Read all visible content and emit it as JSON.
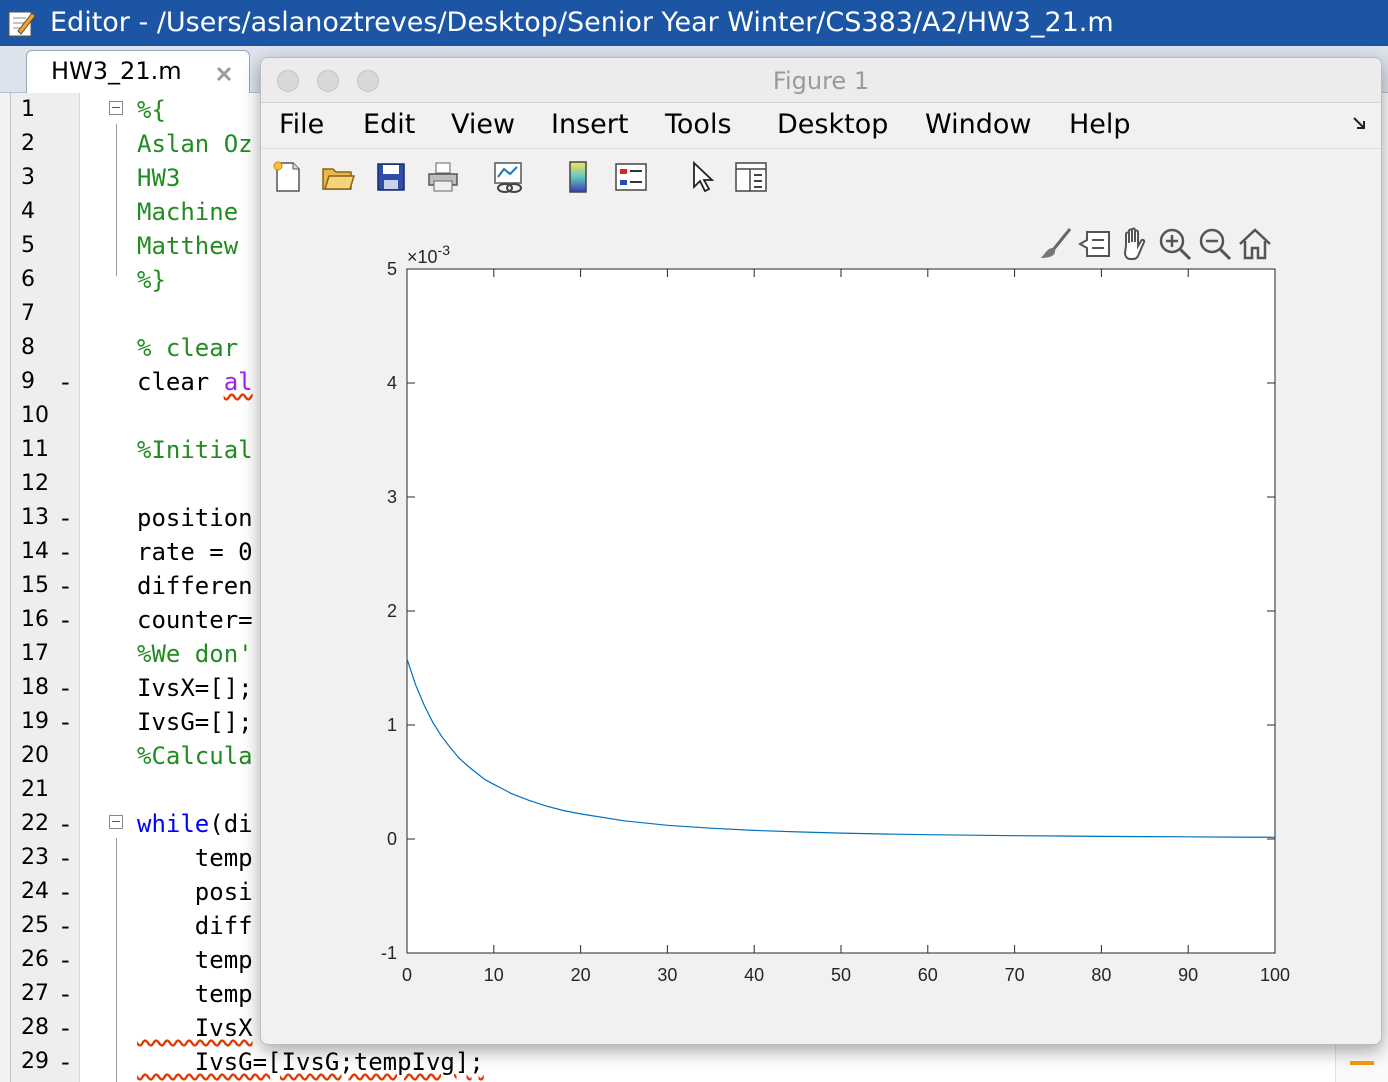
{
  "editor": {
    "title": "Editor - /Users/aslanoztreves/Desktop/Senior Year Winter/CS383/A2/HW3_21.m",
    "tab_label": "HW3_21.m",
    "lines": [
      {
        "n": "1",
        "bp": "",
        "code": "%{",
        "cls": "c-comment",
        "fold": true
      },
      {
        "n": "2",
        "bp": "",
        "code": "Aslan Oz",
        "cls": "c-comment"
      },
      {
        "n": "3",
        "bp": "",
        "code": "HW3",
        "cls": "c-comment"
      },
      {
        "n": "4",
        "bp": "",
        "code": "Machine",
        "cls": "c-comment"
      },
      {
        "n": "5",
        "bp": "",
        "code": "Matthew",
        "cls": "c-comment"
      },
      {
        "n": "6",
        "bp": "",
        "code": "%}",
        "cls": "c-comment"
      },
      {
        "n": "7",
        "bp": "",
        "code": "",
        "cls": ""
      },
      {
        "n": "8",
        "bp": "",
        "code": "% clear",
        "cls": "c-comment"
      },
      {
        "n": "9",
        "bp": "-",
        "code": "clear ",
        "cls": "",
        "tail": "al"
      },
      {
        "n": "10",
        "bp": "",
        "code": "",
        "cls": ""
      },
      {
        "n": "11",
        "bp": "",
        "code": "%Initial",
        "cls": "c-comment"
      },
      {
        "n": "12",
        "bp": "",
        "code": "",
        "cls": ""
      },
      {
        "n": "13",
        "bp": "-",
        "code": "position",
        "cls": ""
      },
      {
        "n": "14",
        "bp": "-",
        "code": "rate = 0",
        "cls": ""
      },
      {
        "n": "15",
        "bp": "-",
        "code": "differen",
        "cls": ""
      },
      {
        "n": "16",
        "bp": "-",
        "code": "counter=",
        "cls": ""
      },
      {
        "n": "17",
        "bp": "",
        "code": "%We don'",
        "cls": "c-comment"
      },
      {
        "n": "18",
        "bp": "-",
        "code": "IvsX=[];",
        "cls": ""
      },
      {
        "n": "19",
        "bp": "-",
        "code": "IvsG=[];",
        "cls": ""
      },
      {
        "n": "20",
        "bp": "",
        "code": "%Calcula",
        "cls": "c-comment"
      },
      {
        "n": "21",
        "bp": "",
        "code": "",
        "cls": ""
      },
      {
        "n": "22",
        "bp": "-",
        "code": "while",
        "cls": "c-keyword",
        "fold": true,
        "tail": "(di"
      },
      {
        "n": "23",
        "bp": "-",
        "code": "    temp",
        "cls": ""
      },
      {
        "n": "24",
        "bp": "-",
        "code": "    posi",
        "cls": ""
      },
      {
        "n": "25",
        "bp": "-",
        "code": "    diff",
        "cls": ""
      },
      {
        "n": "26",
        "bp": "-",
        "code": "    temp",
        "cls": ""
      },
      {
        "n": "27",
        "bp": "-",
        "code": "    temp",
        "cls": ""
      },
      {
        "n": "28",
        "bp": "-",
        "code": "    IvsX",
        "cls": ""
      },
      {
        "n": "29",
        "bp": "-",
        "code": "    IvsG=[IvsG;tempIvg];",
        "cls": ""
      }
    ]
  },
  "figure": {
    "title": "Figure 1",
    "menu": [
      "File",
      "Edit",
      "View",
      "Insert",
      "Tools",
      "Desktop",
      "Window",
      "Help"
    ],
    "toolbar_icons": [
      "new-figure-icon",
      "open-file-icon",
      "save-icon",
      "print-icon",
      "link-plot-icon",
      "colorbar-icon",
      "legend-icon",
      "pointer-icon",
      "property-inspector-icon"
    ],
    "axes_toolbar_icons": [
      "brush-icon",
      "data-tips-icon",
      "pan-icon",
      "zoom-in-icon",
      "zoom-out-icon",
      "home-icon"
    ]
  },
  "chart_data": {
    "type": "line",
    "exponent_label": "×10",
    "exponent_power": "-3",
    "xlim": [
      0,
      100
    ],
    "ylim": [
      -1,
      5
    ],
    "x_ticks": [
      "0",
      "10",
      "20",
      "30",
      "40",
      "50",
      "60",
      "70",
      "80",
      "90",
      "100"
    ],
    "y_ticks": [
      "-1",
      "0",
      "1",
      "2",
      "3",
      "4",
      "5"
    ],
    "line_color": "#0072bd",
    "grid": false,
    "series": [
      {
        "x": [
          0,
          1,
          2,
          3,
          4,
          5,
          6,
          7,
          8,
          9,
          10,
          12,
          14,
          16,
          18,
          20,
          25,
          30,
          35,
          40,
          45,
          50,
          55,
          60,
          65,
          70,
          75,
          80,
          85,
          90,
          95,
          100
        ],
        "values": [
          1.58,
          1.35,
          1.17,
          1.02,
          0.9,
          0.8,
          0.71,
          0.64,
          0.58,
          0.52,
          0.48,
          0.4,
          0.34,
          0.29,
          0.25,
          0.22,
          0.16,
          0.12,
          0.095,
          0.075,
          0.062,
          0.052,
          0.044,
          0.038,
          0.033,
          0.029,
          0.026,
          0.023,
          0.021,
          0.019,
          0.017,
          0.015
        ]
      }
    ]
  }
}
